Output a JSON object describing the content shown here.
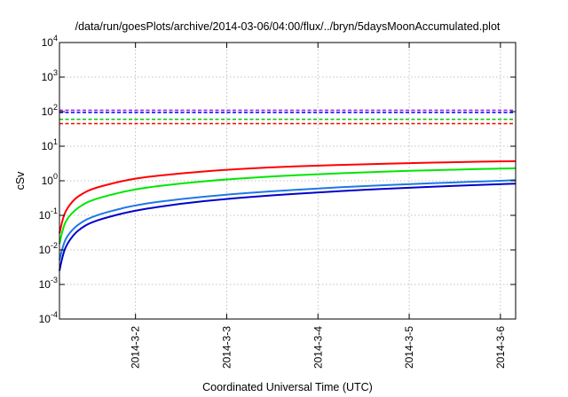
{
  "chart_data": {
    "type": "line",
    "title": "/data/run/goesPlots/archive/2014-03-06/04:00/flux/../bryn/5daysMoonAccumulated.plot",
    "xlabel": "Coordinated Universal Time (UTC)",
    "ylabel": "cSv",
    "y_scale": "log",
    "ylim": [
      0.0001,
      10000
    ],
    "y_ticks": [
      {
        "base": "10",
        "exp": "-4",
        "value": 0.0001
      },
      {
        "base": "10",
        "exp": "-3",
        "value": 0.001
      },
      {
        "base": "10",
        "exp": "-2",
        "value": 0.01
      },
      {
        "base": "10",
        "exp": "-1",
        "value": 0.1
      },
      {
        "base": "10",
        "exp": "0",
        "value": 1
      },
      {
        "base": "10",
        "exp": "1",
        "value": 10
      },
      {
        "base": "10",
        "exp": "2",
        "value": 100
      },
      {
        "base": "10",
        "exp": "3",
        "value": 1000
      },
      {
        "base": "10",
        "exp": "4",
        "value": 10000
      }
    ],
    "xlim": [
      "2014-03-01T04:00",
      "2014-03-06T04:00"
    ],
    "x_ticks": [
      {
        "label": "2014-3-2",
        "value": "2014-03-02T00:00"
      },
      {
        "label": "2014-3-3",
        "value": "2014-03-03T00:00"
      },
      {
        "label": "2014-3-4",
        "value": "2014-03-04T00:00"
      },
      {
        "label": "2014-3-5",
        "value": "2014-03-05T00:00"
      },
      {
        "label": "2014-3-6",
        "value": "2014-03-06T00:00"
      }
    ],
    "grid": true,
    "legend": "none",
    "thresholds": [
      {
        "value": 110,
        "color": "#a020f0",
        "style": "dashed"
      },
      {
        "value": 95,
        "color": "#0000ff",
        "style": "dashed"
      },
      {
        "value": 60,
        "color": "#00cc00",
        "style": "dashed"
      },
      {
        "value": 45,
        "color": "#ff0000",
        "style": "dashed"
      }
    ],
    "series": [
      {
        "color": "#ff0000",
        "x": [
          "2014-03-01T04:00",
          "2014-03-01T05:00",
          "2014-03-01T06:00",
          "2014-03-01T08:00",
          "2014-03-01T10:00",
          "2014-03-01T12:00",
          "2014-03-01T16:00",
          "2014-03-02T00:00",
          "2014-03-02T12:00",
          "2014-03-03T00:00",
          "2014-03-03T12:00",
          "2014-03-04T00:00",
          "2014-03-04T12:00",
          "2014-03-05T00:00",
          "2014-03-05T12:00",
          "2014-03-06T00:00",
          "2014-03-06T04:00"
        ],
        "y": [
          0.03,
          0.09,
          0.16,
          0.3,
          0.42,
          0.55,
          0.75,
          1.2,
          1.65,
          2.1,
          2.45,
          2.75,
          3.0,
          3.25,
          3.45,
          3.65,
          3.7
        ]
      },
      {
        "color": "#00e600",
        "x": [
          "2014-03-01T04:00",
          "2014-03-01T05:00",
          "2014-03-01T06:00",
          "2014-03-01T08:00",
          "2014-03-01T10:00",
          "2014-03-01T12:00",
          "2014-03-01T16:00",
          "2014-03-02T00:00",
          "2014-03-02T12:00",
          "2014-03-03T00:00",
          "2014-03-03T12:00",
          "2014-03-04T00:00",
          "2014-03-04T12:00",
          "2014-03-05T00:00",
          "2014-03-05T12:00",
          "2014-03-06T00:00",
          "2014-03-06T04:00"
        ],
        "y": [
          0.015,
          0.045,
          0.08,
          0.14,
          0.2,
          0.26,
          0.36,
          0.58,
          0.85,
          1.1,
          1.35,
          1.55,
          1.75,
          1.95,
          2.1,
          2.25,
          2.3
        ]
      },
      {
        "color": "#1e78e6",
        "x": [
          "2014-03-01T04:00",
          "2014-03-01T05:00",
          "2014-03-01T06:00",
          "2014-03-01T08:00",
          "2014-03-01T10:00",
          "2014-03-01T12:00",
          "2014-03-01T16:00",
          "2014-03-02T00:00",
          "2014-03-02T12:00",
          "2014-03-03T00:00",
          "2014-03-03T12:00",
          "2014-03-04T00:00",
          "2014-03-04T12:00",
          "2014-03-05T00:00",
          "2014-03-05T12:00",
          "2014-03-06T00:00",
          "2014-03-06T04:00"
        ],
        "y": [
          0.005,
          0.014,
          0.025,
          0.045,
          0.065,
          0.085,
          0.12,
          0.2,
          0.3,
          0.4,
          0.5,
          0.6,
          0.7,
          0.8,
          0.9,
          1.0,
          1.05
        ]
      },
      {
        "color": "#0000cc",
        "x": [
          "2014-03-01T04:00",
          "2014-03-01T05:00",
          "2014-03-01T06:00",
          "2014-03-01T08:00",
          "2014-03-01T10:00",
          "2014-03-01T12:00",
          "2014-03-01T16:00",
          "2014-03-02T00:00",
          "2014-03-02T12:00",
          "2014-03-03T00:00",
          "2014-03-03T12:00",
          "2014-03-04T00:00",
          "2014-03-04T12:00",
          "2014-03-05T00:00",
          "2014-03-05T12:00",
          "2014-03-06T00:00",
          "2014-03-06T04:00"
        ],
        "y": [
          0.0025,
          0.008,
          0.015,
          0.03,
          0.045,
          0.06,
          0.085,
          0.14,
          0.22,
          0.3,
          0.38,
          0.46,
          0.55,
          0.63,
          0.72,
          0.8,
          0.83
        ]
      }
    ]
  }
}
